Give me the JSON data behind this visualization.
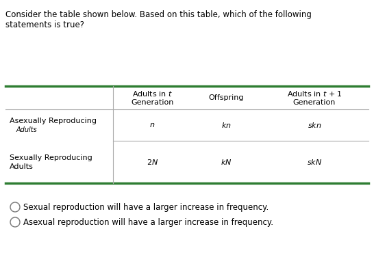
{
  "title_line1": "Consider the table shown below. Based on this table, which of the following",
  "title_line2": "statements is true?",
  "row1_label_line1": "Asexually Reproducing",
  "row1_label_line2": "Adults",
  "row2_label_line1": "Sexually Reproducing",
  "row2_label_line2": "Adults",
  "option1": "Sexual reproduction will have a larger increase in frequency.",
  "option2": "Asexual reproduction will have a larger increase in frequency.",
  "header_border_color": "#2e7d32",
  "bg_color": "#ffffff",
  "text_color": "#000000",
  "font_size_title": 8.5,
  "font_size_table": 8.0,
  "font_size_options": 8.5
}
